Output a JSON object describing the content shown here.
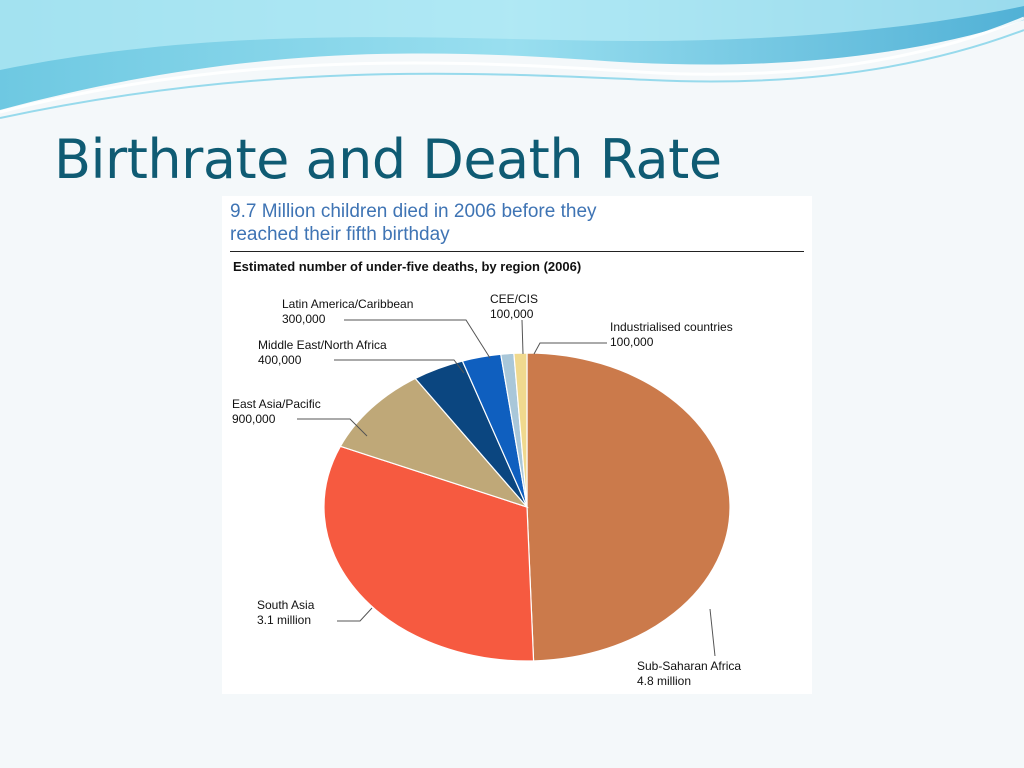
{
  "slide": {
    "title": "Birthrate and Death Rate",
    "accent_color": "#0f5b73"
  },
  "figure": {
    "headline_line1": "9.7 Million children died in 2006 before they",
    "headline_line2": "reached their fifth birthday"
  },
  "chart_data": {
    "type": "pie",
    "title": "Estimated number of under-five deaths, by region (2006)",
    "unit": "deaths",
    "slices": [
      {
        "name": "Sub-Saharan Africa",
        "value": 4800000,
        "value_label": "4.8 million",
        "color": "#cb7a4b"
      },
      {
        "name": "South Asia",
        "value": 3100000,
        "value_label": "3.1 million",
        "color": "#f65a40"
      },
      {
        "name": "East Asia/Pacific",
        "value": 900000,
        "value_label": "900,000",
        "color": "#bfa878"
      },
      {
        "name": "Middle East/North Africa",
        "value": 400000,
        "value_label": "400,000",
        "color": "#0b4680"
      },
      {
        "name": "Latin America/Caribbean",
        "value": 300000,
        "value_label": "300,000",
        "color": "#0f5fbf"
      },
      {
        "name": "CEE/CIS",
        "value": 100000,
        "value_label": "100,000",
        "color": "#a9c7d9"
      },
      {
        "name": "Industrialised countries",
        "value": 100000,
        "value_label": "100,000",
        "color": "#f0d98e"
      }
    ]
  }
}
